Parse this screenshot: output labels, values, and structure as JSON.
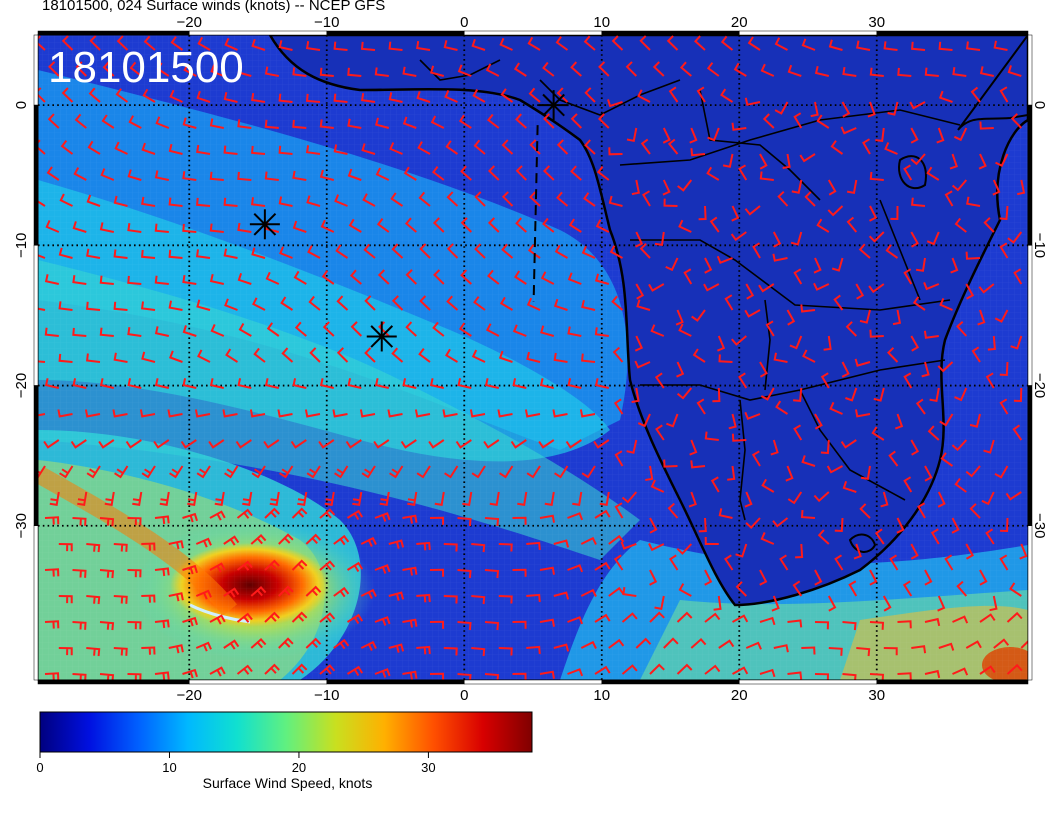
{
  "title": "18101500, 024 Surface winds (knots) -- NCEP GFS",
  "stamp": "18101500",
  "map": {
    "lon_range": [
      -31,
      41
    ],
    "lat_range": [
      -41,
      5
    ],
    "lon_ticks": [
      {
        "lon": -20,
        "label": "−20"
      },
      {
        "lon": -10,
        "label": "−10"
      },
      {
        "lon": 0,
        "label": "0"
      },
      {
        "lon": 10,
        "label": "10"
      },
      {
        "lon": 20,
        "label": "20"
      },
      {
        "lon": 30,
        "label": "30"
      }
    ],
    "lat_ticks": [
      {
        "lat": 0,
        "label": "0"
      },
      {
        "lat": -10,
        "label": "−10"
      },
      {
        "lat": -20,
        "label": "−20"
      },
      {
        "lat": -30,
        "label": "−30"
      }
    ],
    "colors": {
      "ocean_calm": "#1d3bd1",
      "land": "#1730b8",
      "wind_barb": "#ff1a1a",
      "coastline": "#000000",
      "gridline": "#000000"
    },
    "storm_markers": [
      {
        "lon": 6.5,
        "lat": 0.0
      },
      {
        "lon": -14.5,
        "lat": -8.5
      },
      {
        "lon": -6.0,
        "lat": -16.5
      }
    ]
  },
  "colorbar": {
    "title": "Surface Wind Speed, knots",
    "range": [
      0,
      38
    ],
    "ticks": [
      {
        "value": 0,
        "label": "0"
      },
      {
        "value": 10,
        "label": "10"
      },
      {
        "value": 20,
        "label": "20"
      },
      {
        "value": 30,
        "label": "30"
      }
    ],
    "stops": [
      "#00007f",
      "#0010e0",
      "#0060ff",
      "#00b8ff",
      "#10e0d0",
      "#60f080",
      "#c8e020",
      "#ffb000",
      "#ff5000",
      "#d80000",
      "#800000"
    ]
  }
}
